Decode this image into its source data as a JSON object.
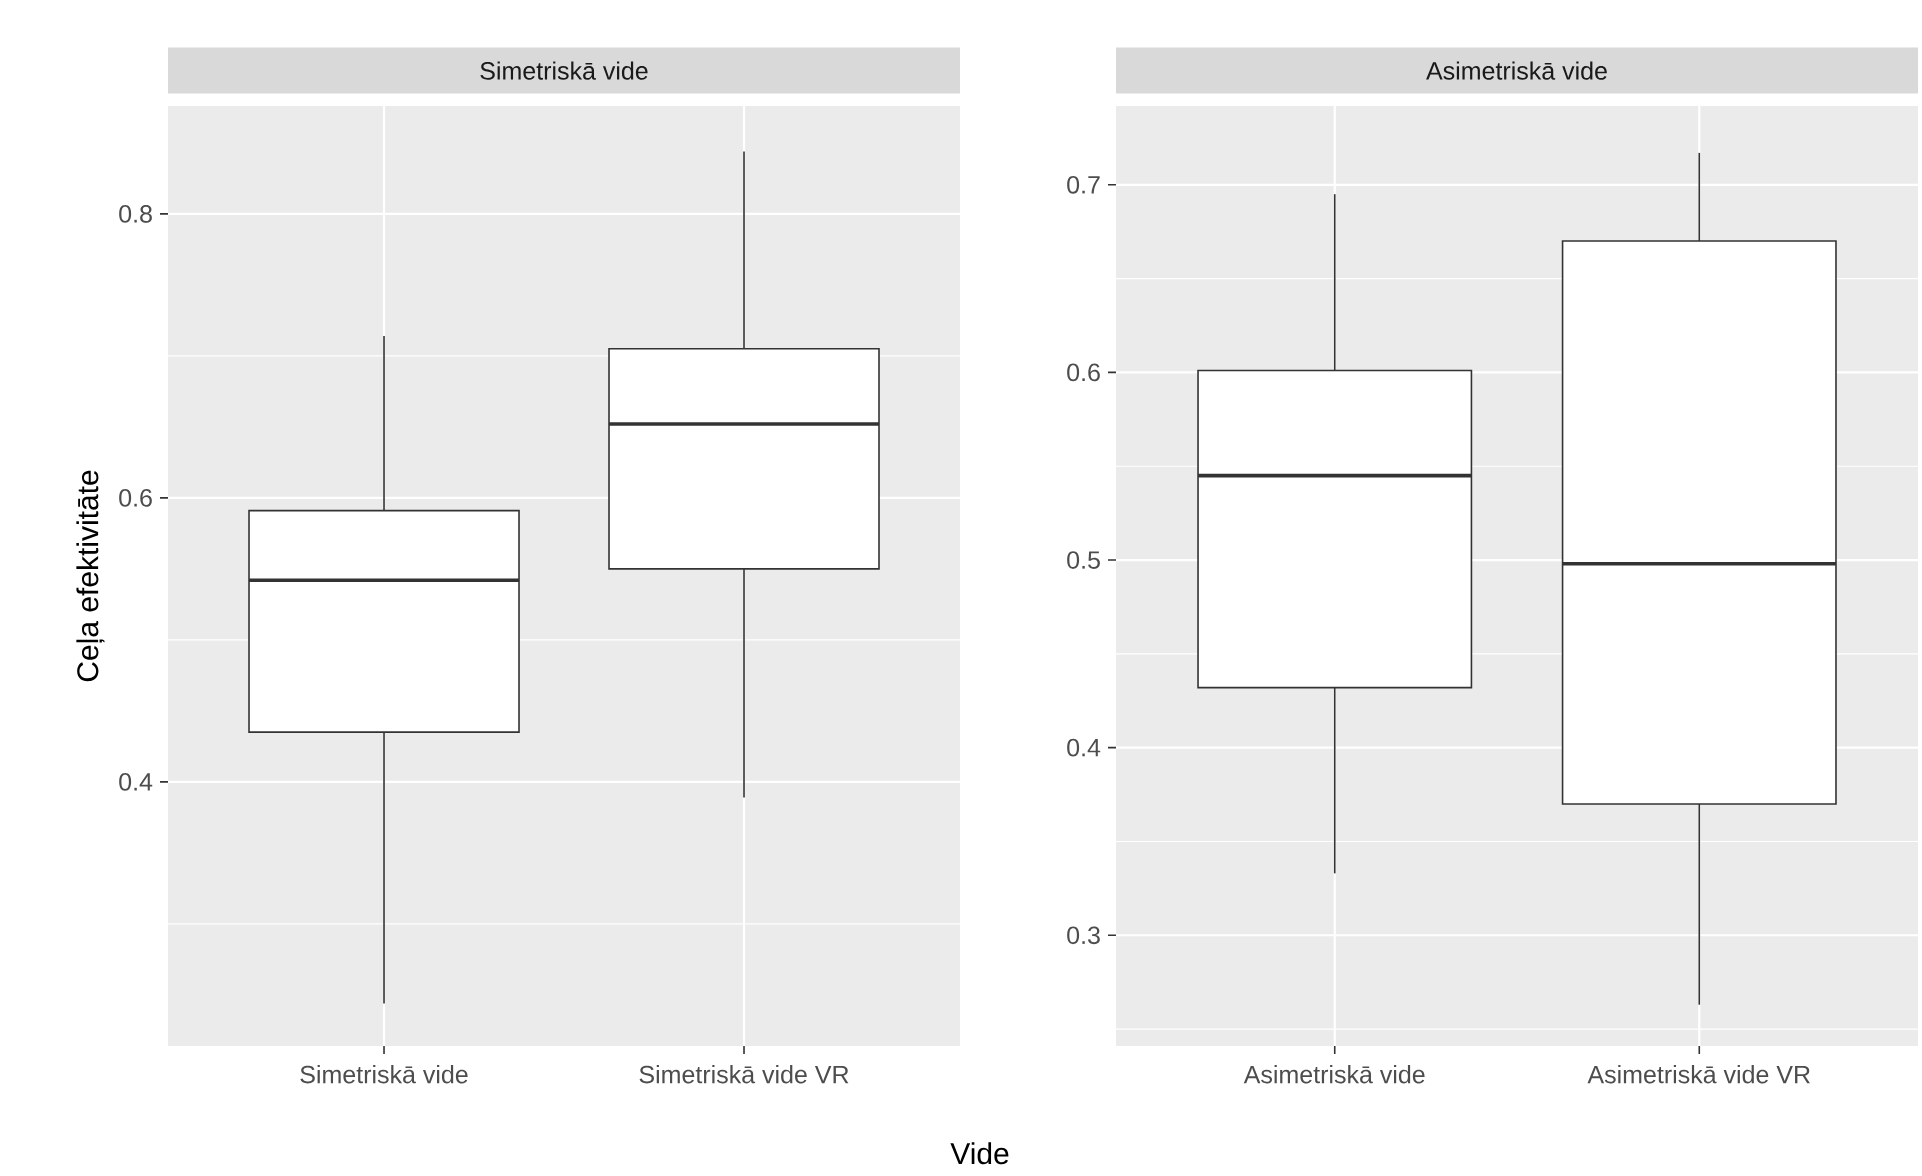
{
  "chart_data": [
    {
      "type": "box",
      "title": "Simetriskā vide",
      "ylabel": "Ceļa efektivitāte",
      "xlabel": "Vide",
      "categories": [
        "Simetriskā vide",
        "Simetriskā vide VR"
      ],
      "boxes": [
        {
          "low": 0.244,
          "q1": 0.435,
          "median": 0.542,
          "q3": 0.591,
          "high": 0.714
        },
        {
          "low": 0.389,
          "q1": 0.55,
          "median": 0.652,
          "q3": 0.705,
          "high": 0.844
        }
      ],
      "ylim": [
        0.214,
        0.876
      ],
      "yticks": [
        {
          "value": 0.3,
          "label": null
        },
        0.4,
        {
          "value": 0.5,
          "label": null
        },
        0.6,
        {
          "value": 0.7,
          "label": null
        },
        0.8
      ],
      "grid": true
    },
    {
      "type": "box",
      "title": "Asimetriskā vide",
      "categories": [
        "Asimetriskā vide",
        "Asimetriskā vide VR"
      ],
      "boxes": [
        {
          "low": 0.333,
          "q1": 0.432,
          "median": 0.545,
          "q3": 0.601,
          "high": 0.695
        },
        {
          "low": 0.263,
          "q1": 0.37,
          "median": 0.498,
          "q3": 0.67,
          "high": 0.717
        }
      ],
      "ylim": [
        0.241,
        0.742
      ],
      "yticks": [
        {
          "value": 0.25,
          "label": null
        },
        0.3,
        {
          "value": 0.35,
          "label": null
        },
        0.4,
        {
          "value": 0.45,
          "label": null
        },
        0.5,
        {
          "value": 0.55,
          "label": null
        },
        0.6,
        {
          "value": 0.65,
          "label": null
        },
        0.7
      ],
      "grid": true
    }
  ]
}
